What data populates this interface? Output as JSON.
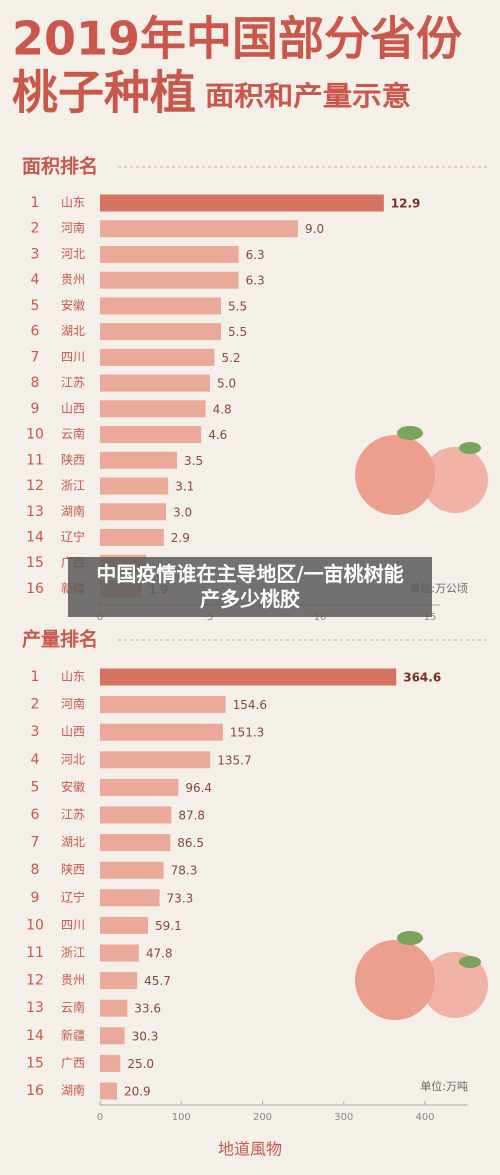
{
  "header": {
    "title_line1": "2019年中国部分省份",
    "title_line2": "桃子种植",
    "title_line3": "面积和产量示意"
  },
  "overlay": "中国疫情谁在主导地区/一亩桃树能产多少桃胶",
  "footer": "地道風物",
  "chart_data": [
    {
      "type": "bar",
      "orientation": "horizontal",
      "title": "面积排名",
      "unit_label": "单位:万公顷",
      "ranks": [
        1,
        2,
        3,
        4,
        5,
        6,
        7,
        8,
        9,
        10,
        11,
        12,
        13,
        14,
        15,
        16
      ],
      "categories": [
        "山东",
        "河南",
        "河北",
        "贵州",
        "安徽",
        "湖北",
        "四川",
        "江苏",
        "山西",
        "云南",
        "陕西",
        "浙江",
        "湖南",
        "辽宁",
        "广西",
        "新疆"
      ],
      "values": [
        12.9,
        9.0,
        6.3,
        6.3,
        5.5,
        5.5,
        5.2,
        5.0,
        4.8,
        4.6,
        3.5,
        3.1,
        3.0,
        2.9,
        2.1,
        1.9
      ],
      "value_labels": [
        "12.9",
        "9.0",
        "6.3",
        "6.3",
        "5.5",
        "5.5",
        "5.2",
        "5.0",
        "4.8",
        "4.6",
        "3.5",
        "3.1",
        "3.0",
        "2.9",
        null,
        "1.9"
      ],
      "colors": [
        "#d4735f",
        "#eaa999",
        "#eaa999",
        "#eaa999",
        "#eaa999",
        "#eaa999",
        "#eaa999",
        "#eaa999",
        "#eaa999",
        "#eaa999",
        "#eaa999",
        "#eaa999",
        "#eaa999",
        "#eaa999",
        "#eaa999",
        "#eaa999"
      ],
      "xlim": [
        0,
        15
      ],
      "xticks": [
        0,
        5,
        10,
        15
      ]
    },
    {
      "type": "bar",
      "orientation": "horizontal",
      "title": "产量排名",
      "unit_label": "单位:万吨",
      "ranks": [
        1,
        2,
        3,
        4,
        5,
        6,
        7,
        8,
        9,
        10,
        11,
        12,
        13,
        14,
        15,
        16
      ],
      "categories": [
        "山东",
        "河南",
        "山西",
        "河北",
        "安徽",
        "江苏",
        "湖北",
        "陕西",
        "辽宁",
        "四川",
        "浙江",
        "贵州",
        "云南",
        "新疆",
        "广西",
        "湖南"
      ],
      "values": [
        364.6,
        154.6,
        151.3,
        135.7,
        96.4,
        87.8,
        86.5,
        78.3,
        73.3,
        59.1,
        47.8,
        45.7,
        33.6,
        30.3,
        25.0,
        20.9
      ],
      "value_labels": [
        "364.6",
        "154.6",
        "151.3",
        "135.7",
        "96.4",
        "87.8",
        "86.5",
        "78.3",
        "73.3",
        "59.1",
        "47.8",
        "45.7",
        "33.6",
        "30.3",
        "25.0",
        "20.9"
      ],
      "colors": [
        "#d4735f",
        "#eaa999",
        "#eaa999",
        "#eaa999",
        "#eaa999",
        "#eaa999",
        "#eaa999",
        "#eaa999",
        "#eaa999",
        "#eaa999",
        "#eaa999",
        "#eaa999",
        "#eaa999",
        "#eaa999",
        "#eaa999",
        "#eaa999"
      ],
      "xlim": [
        0,
        440
      ],
      "xticks": [
        0,
        100,
        200,
        300,
        400
      ]
    }
  ]
}
